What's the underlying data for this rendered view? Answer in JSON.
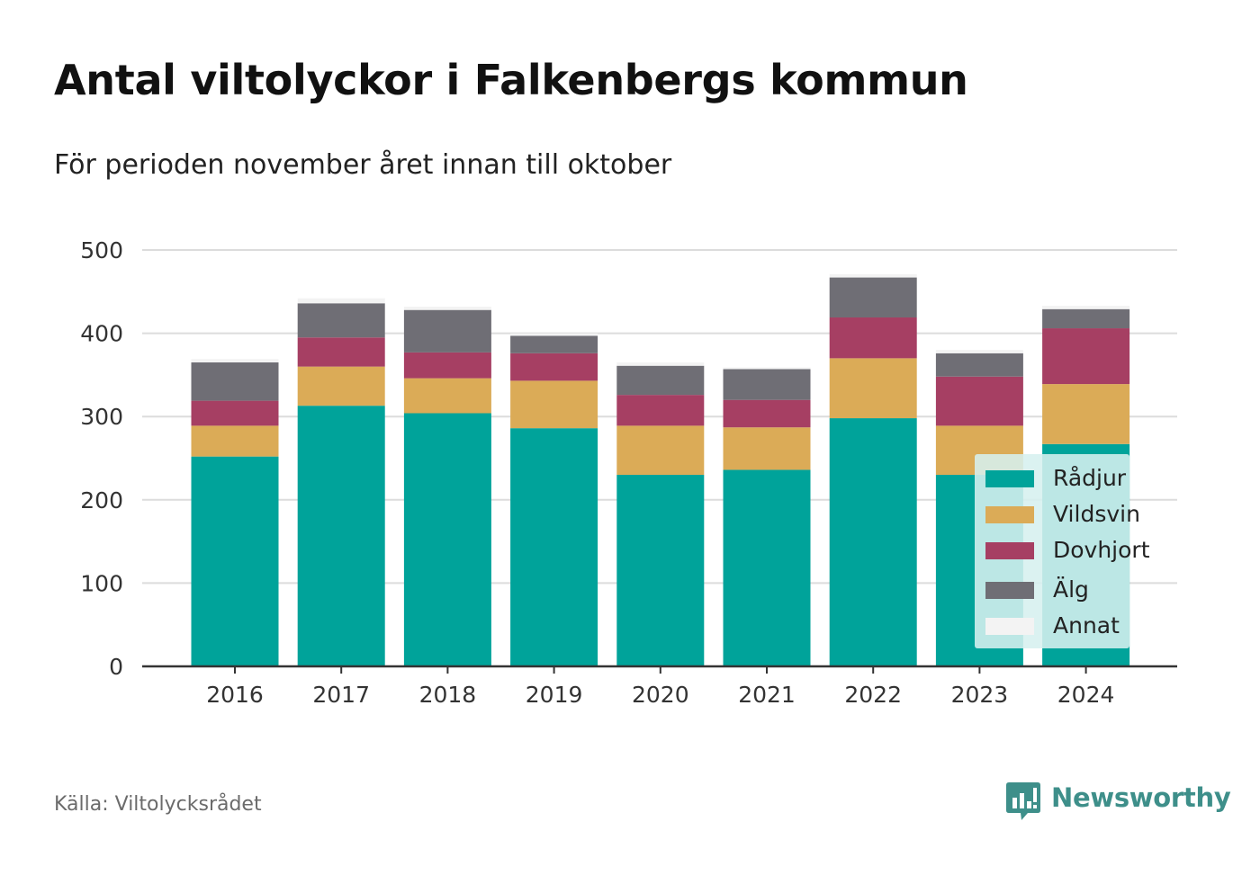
{
  "title": "Antal viltolyckor i Falkenbergs kommun",
  "subtitle": "För perioden november året innan till oktober",
  "source": "Källa: Viltolycksrådet",
  "brand": {
    "name": "Newsworthy",
    "icon": "newsworthy-logo-icon",
    "color": "#3e8f8a"
  },
  "chart_data": {
    "type": "bar",
    "stacked": true,
    "categories": [
      "2016",
      "2017",
      "2018",
      "2019",
      "2020",
      "2021",
      "2022",
      "2023",
      "2024"
    ],
    "series": [
      {
        "name": "Rådjur",
        "color": "#00a39a",
        "values": [
          252,
          313,
          304,
          286,
          230,
          236,
          298,
          230,
          267
        ]
      },
      {
        "name": "Vildsvin",
        "color": "#dbab57",
        "values": [
          37,
          47,
          42,
          57,
          59,
          51,
          72,
          59,
          72
        ]
      },
      {
        "name": "Dovhjort",
        "color": "#a63f63",
        "values": [
          30,
          35,
          31,
          33,
          37,
          33,
          49,
          59,
          67
        ]
      },
      {
        "name": "Älg",
        "color": "#6f6e75",
        "values": [
          46,
          41,
          51,
          21,
          35,
          37,
          48,
          28,
          23
        ]
      },
      {
        "name": "Annat",
        "color": "#f3f3f3",
        "values": [
          4,
          6,
          4,
          3,
          4,
          2,
          4,
          4,
          4
        ]
      }
    ],
    "ylim": [
      0,
      500
    ],
    "yticks": [
      0,
      100,
      200,
      300,
      400,
      500
    ],
    "grid": true,
    "legend_position": "bottom-right"
  }
}
